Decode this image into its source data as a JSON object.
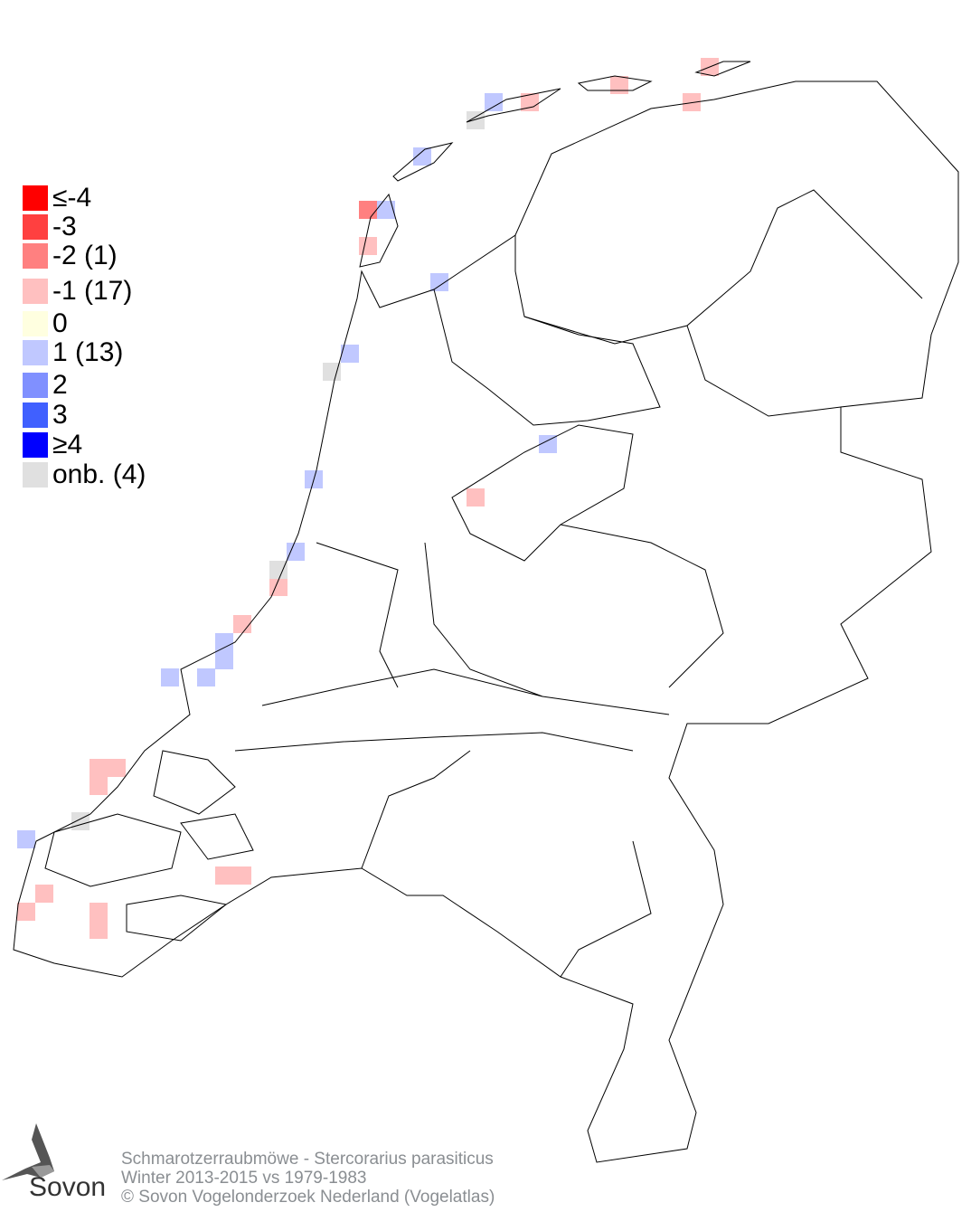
{
  "legend": [
    {
      "label": "≤-4",
      "color": "#ff0000"
    },
    {
      "label": "-3",
      "color": "#ff4040"
    },
    {
      "label": "-2 (1)",
      "color": "#ff8080"
    },
    {
      "label": "-1 (17)",
      "color": "#ffc0c0"
    },
    {
      "label": " 0",
      "color": "#ffffe0"
    },
    {
      "label": " 1 (13)",
      "color": "#c0c8ff"
    },
    {
      "label": " 2",
      "color": "#8090ff"
    },
    {
      "label": " 3",
      "color": "#4060ff"
    },
    {
      "label": "≥4",
      "color": "#0000ff"
    },
    {
      "label": "onb. (4)",
      "color": "#e0e0e0"
    }
  ],
  "footer": {
    "species": "Schmarotzerraubmöwe - Stercorarius parasiticus",
    "period": "Winter 2013-2015 vs 1979-1983",
    "copyright": "© Sovon Vogelonderzoek Nederland (Vogelatlas)"
  },
  "logo": {
    "text": "Sovon"
  }
}
